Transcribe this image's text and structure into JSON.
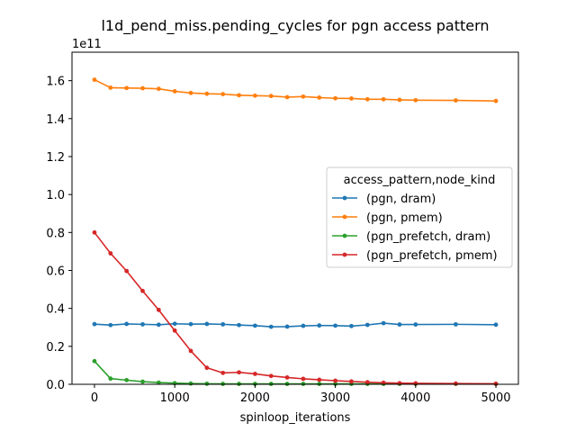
{
  "chart_data": {
    "type": "line",
    "title": "l1d_pend_miss.pending_cycles for pgn access pattern",
    "xlabel": "spinloop_iterations",
    "ylabel": "",
    "y_offset_label": "1e11",
    "xlim": [
      -280,
      5280
    ],
    "ylim": [
      0,
      1.75
    ],
    "x_ticks": [
      0,
      1000,
      2000,
      3000,
      4000,
      5000
    ],
    "x_tick_labels": [
      "0",
      "1000",
      "2000",
      "3000",
      "4000",
      "5000"
    ],
    "y_ticks": [
      0,
      0.2,
      0.4,
      0.6,
      0.8,
      1.0,
      1.2,
      1.4,
      1.6
    ],
    "y_tick_labels": [
      "0.0",
      "0.2",
      "0.4",
      "0.6",
      "0.8",
      "1.0",
      "1.2",
      "1.4",
      "1.6"
    ],
    "grid": false,
    "legend": {
      "title": "access_pattern,node_kind",
      "placement": "center-right"
    },
    "x": [
      0,
      200,
      400,
      600,
      800,
      1000,
      1200,
      1400,
      1600,
      1800,
      2000,
      2200,
      2400,
      2600,
      2800,
      3000,
      3200,
      3400,
      3600,
      3800,
      4000,
      4500,
      5000
    ],
    "series": [
      {
        "name": "(pgn, dram)",
        "color": "#1f77b4",
        "values": [
          0.317,
          0.312,
          0.318,
          0.316,
          0.314,
          0.319,
          0.317,
          0.318,
          0.316,
          0.312,
          0.309,
          0.303,
          0.304,
          0.308,
          0.31,
          0.309,
          0.307,
          0.313,
          0.322,
          0.315,
          0.315,
          0.316,
          0.314
        ]
      },
      {
        "name": "(pgn, pmem)",
        "color": "#ff7f0e",
        "values": [
          1.605,
          1.563,
          1.561,
          1.56,
          1.557,
          1.544,
          1.535,
          1.531,
          1.529,
          1.523,
          1.521,
          1.519,
          1.513,
          1.516,
          1.511,
          1.507,
          1.506,
          1.502,
          1.502,
          1.499,
          1.497,
          1.496,
          1.493
        ]
      },
      {
        "name": "(pgn_prefetch, dram)",
        "color": "#2ca02c",
        "values": [
          0.122,
          0.03,
          0.022,
          0.014,
          0.009,
          0.006,
          0.004,
          0.003,
          0.002,
          0.002,
          0.002,
          0.002,
          0.002,
          0.002,
          0.002,
          0.002,
          0.002,
          0.002,
          0.002,
          0.002,
          0.002,
          0.002,
          0.002
        ]
      },
      {
        "name": "(pgn_prefetch, pmem)",
        "color": "#d62728",
        "values": [
          0.8,
          0.69,
          0.597,
          0.492,
          0.392,
          0.283,
          0.176,
          0.087,
          0.06,
          0.063,
          0.055,
          0.044,
          0.036,
          0.029,
          0.024,
          0.019,
          0.015,
          0.011,
          0.008,
          0.006,
          0.005,
          0.004,
          0.003
        ]
      }
    ]
  }
}
